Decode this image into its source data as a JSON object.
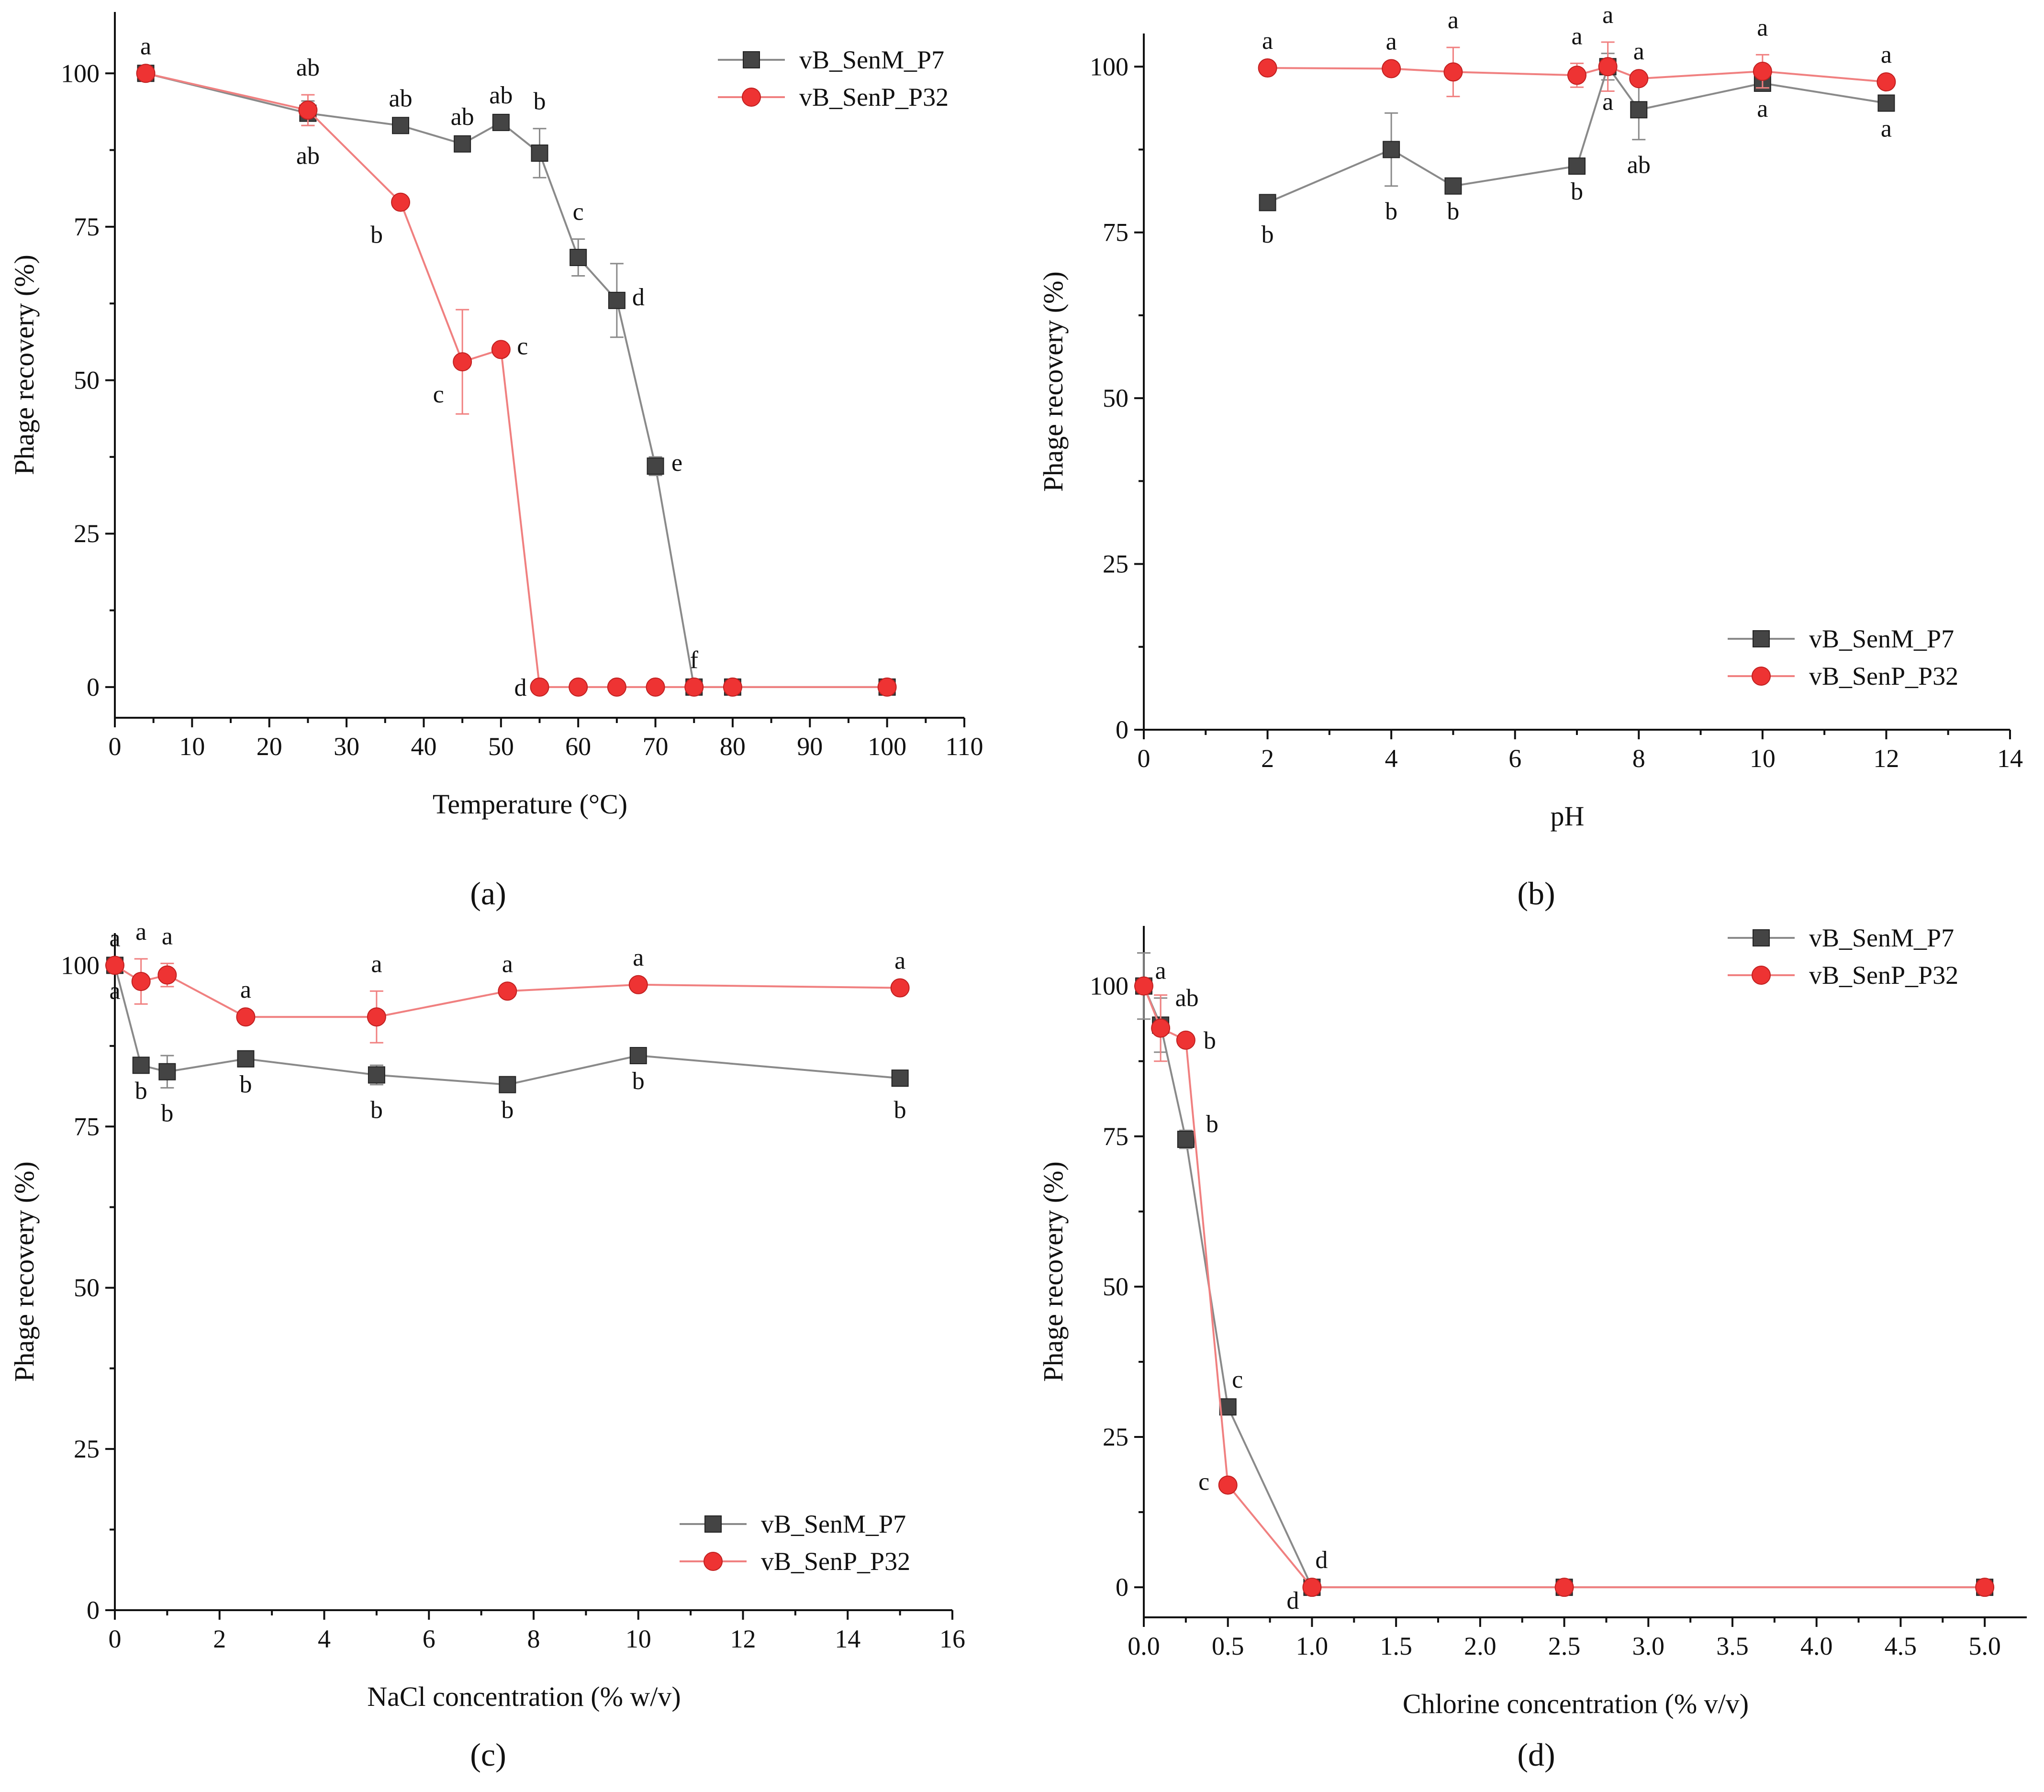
{
  "figure": {
    "panel_labels": [
      "(a)",
      "(b)",
      "(c)",
      "(d)"
    ]
  },
  "colors": {
    "p7": "#444444",
    "p32": "#ee3333",
    "p7_line": "#8a8a8a",
    "p32_line": "#f08080"
  },
  "chart_data": [
    {
      "type": "line",
      "panel": "(a)",
      "panel_letter": "a",
      "xlabel": "Temperature (°C)",
      "ylabel": "Phage recovery (%)",
      "xlim": [
        0,
        110
      ],
      "ylim": [
        -5,
        110
      ],
      "xticks": [
        0,
        10,
        20,
        30,
        40,
        50,
        60,
        70,
        80,
        90,
        100,
        110
      ],
      "xtick_labels": [
        "0",
        "10",
        "20",
        "30",
        "40",
        "50",
        "60",
        "70",
        "80",
        "90",
        "100",
        "110"
      ],
      "yticks": [
        0,
        25,
        50,
        75,
        100
      ],
      "ytick_labels": [
        "0",
        "25",
        "50",
        "75",
        "100"
      ],
      "legend_position": "top-right",
      "series": [
        {
          "name": "vB_SenM_P7",
          "marker": "square",
          "x": [
            4,
            25,
            37,
            45,
            50,
            55,
            60,
            65,
            70,
            75,
            80,
            100
          ],
          "y": [
            100,
            93.5,
            91.5,
            88.5,
            92,
            87,
            70,
            63,
            36,
            0,
            0,
            0
          ],
          "err": [
            0,
            2,
            0,
            0,
            0,
            4,
            3,
            6,
            1.5,
            0,
            0,
            0
          ],
          "labels": [
            "",
            "",
            "ab",
            "ab",
            "ab",
            "b",
            "c",
            "d",
            "e",
            "f",
            "",
            ""
          ],
          "label_pos": [
            "",
            "",
            "above",
            "above",
            "above",
            "above",
            "above",
            "right",
            "right",
            "above",
            "",
            ""
          ]
        },
        {
          "name": "vB_SenP_P32",
          "marker": "circle",
          "x": [
            4,
            25,
            37,
            45,
            50,
            55,
            60,
            65,
            70,
            75,
            80,
            100
          ],
          "y": [
            100,
            94,
            79,
            53,
            55,
            0,
            0,
            0,
            0,
            0,
            0,
            0
          ],
          "err": [
            0,
            2.5,
            0,
            8.5,
            0,
            0,
            0,
            0,
            0,
            0,
            0,
            0
          ],
          "labels": [
            "a",
            "ab",
            "b",
            "c",
            "c",
            "d",
            "",
            "",
            "",
            "",
            "",
            ""
          ],
          "label_pos": [
            "above",
            "above-below",
            "below-left",
            "below-left",
            "right",
            "left",
            "",
            "",
            "",
            "",
            "",
            ""
          ],
          "extra_labels": [
            {
              "x": 25,
              "y": 94,
              "text": "ab",
              "pos": "below"
            }
          ]
        }
      ]
    },
    {
      "type": "line",
      "panel": "(b)",
      "panel_letter": "b",
      "xlabel": "pH",
      "ylabel": "Phage recovery (%)",
      "xlim": [
        0,
        14
      ],
      "ylim": [
        0,
        105
      ],
      "xticks": [
        0,
        2,
        4,
        6,
        8,
        10,
        12,
        14
      ],
      "xtick_labels": [
        "0",
        "2",
        "4",
        "6",
        "8",
        "10",
        "12",
        "14"
      ],
      "yticks": [
        0,
        25,
        50,
        75,
        100
      ],
      "ytick_labels": [
        "0",
        "25",
        "50",
        "75",
        "100"
      ],
      "legend_position": "bottom-right",
      "series": [
        {
          "name": "vB_SenM_P7",
          "marker": "square",
          "x": [
            2,
            4,
            5,
            7,
            7.5,
            8,
            10,
            12
          ],
          "y": [
            79.5,
            87.5,
            82,
            85,
            100,
            93.5,
            97.5,
            94.5
          ],
          "err": [
            1,
            5.5,
            0,
            0,
            2,
            4.5,
            0,
            0
          ],
          "labels": [
            "b",
            "b",
            "b",
            "b",
            "a",
            "ab",
            "a",
            "a"
          ]
        },
        {
          "name": "vB_SenP_P32",
          "marker": "circle",
          "x": [
            2,
            4,
            5,
            7,
            7.5,
            8,
            10,
            12
          ],
          "y": [
            99.8,
            99.7,
            99.2,
            98.7,
            100,
            98.2,
            99.3,
            97.7
          ],
          "err": [
            0,
            0,
            3.7,
            1.8,
            3.7,
            0,
            2.5,
            0
          ],
          "labels": [
            "a",
            "a",
            "a",
            "a",
            "a",
            "a",
            "a",
            "a"
          ]
        }
      ]
    },
    {
      "type": "line",
      "panel": "(c)",
      "panel_letter": "c",
      "xlabel": "NaCl concentration (% w/v)",
      "ylabel": "Phage recovery (%)",
      "xlim": [
        0,
        16
      ],
      "ylim": [
        0,
        105
      ],
      "xticks": [
        0,
        2,
        4,
        6,
        8,
        10,
        12,
        14,
        16
      ],
      "xtick_labels": [
        "0",
        "2",
        "4",
        "6",
        "8",
        "10",
        "12",
        "14",
        "16"
      ],
      "yticks": [
        0,
        25,
        50,
        75,
        100
      ],
      "ytick_labels": [
        "0",
        "25",
        "50",
        "75",
        "100"
      ],
      "legend_position": "bottom-right",
      "series": [
        {
          "name": "vB_SenM_P7",
          "marker": "square",
          "x": [
            0,
            0.5,
            1,
            2.5,
            5,
            7.5,
            10,
            15
          ],
          "y": [
            100,
            84.5,
            83.5,
            85.5,
            83,
            81.5,
            86,
            82.5
          ],
          "err": [
            0,
            0,
            2.5,
            0,
            1.5,
            0,
            0,
            1
          ],
          "labels": [
            "a",
            "b",
            "b",
            "b",
            "b",
            "b",
            "b",
            "b"
          ]
        },
        {
          "name": "vB_SenP_P32",
          "marker": "circle",
          "x": [
            0,
            0.5,
            1,
            2.5,
            5,
            7.5,
            10,
            15
          ],
          "y": [
            100,
            97.5,
            98.5,
            92,
            92,
            96,
            97,
            96.5
          ],
          "err": [
            0,
            3.5,
            1.8,
            0,
            4,
            0,
            0,
            0
          ],
          "labels": [
            "a",
            "a",
            "a",
            "a",
            "a",
            "a",
            "a",
            "a"
          ]
        }
      ]
    },
    {
      "type": "line",
      "panel": "(d)",
      "panel_letter": "d",
      "xlabel": "Chlorine concentration (% v/v)",
      "ylabel": "Phage recovery (%)",
      "xlim": [
        0,
        5.25
      ],
      "ylim": [
        -5,
        110
      ],
      "xticks": [
        0,
        0.5,
        1.0,
        1.5,
        2.0,
        2.5,
        3.0,
        3.5,
        4.0,
        4.5,
        5.0
      ],
      "xtick_labels": [
        "0.0",
        "0.5",
        "1.0",
        "1.5",
        "2.0",
        "2.5",
        "3.0",
        "3.5",
        "4.0",
        "4.5",
        "5.0"
      ],
      "yticks": [
        0,
        25,
        50,
        75,
        100
      ],
      "ytick_labels": [
        "0",
        "25",
        "50",
        "75",
        "100"
      ],
      "legend_position": "top-right",
      "series": [
        {
          "name": "vB_SenM_P7",
          "marker": "square",
          "x": [
            0,
            0.1,
            0.25,
            0.5,
            1.0,
            2.5,
            5.0
          ],
          "y": [
            100,
            93.5,
            74.5,
            30,
            0,
            0,
            0
          ],
          "err": [
            5.5,
            4.5,
            1.5,
            0,
            0,
            0,
            0
          ],
          "labels": [
            "a",
            "ab",
            "b",
            "c",
            "d",
            "",
            ""
          ]
        },
        {
          "name": "vB_SenP_P32",
          "marker": "circle",
          "x": [
            0,
            0.1,
            0.25,
            0.5,
            1.0,
            2.5,
            5.0
          ],
          "y": [
            100,
            93,
            91,
            17,
            0,
            0,
            0
          ],
          "err": [
            0,
            5.5,
            0,
            0,
            0,
            0,
            0
          ],
          "labels": [
            "",
            "",
            "b",
            "c",
            "d",
            "",
            ""
          ]
        }
      ]
    }
  ]
}
